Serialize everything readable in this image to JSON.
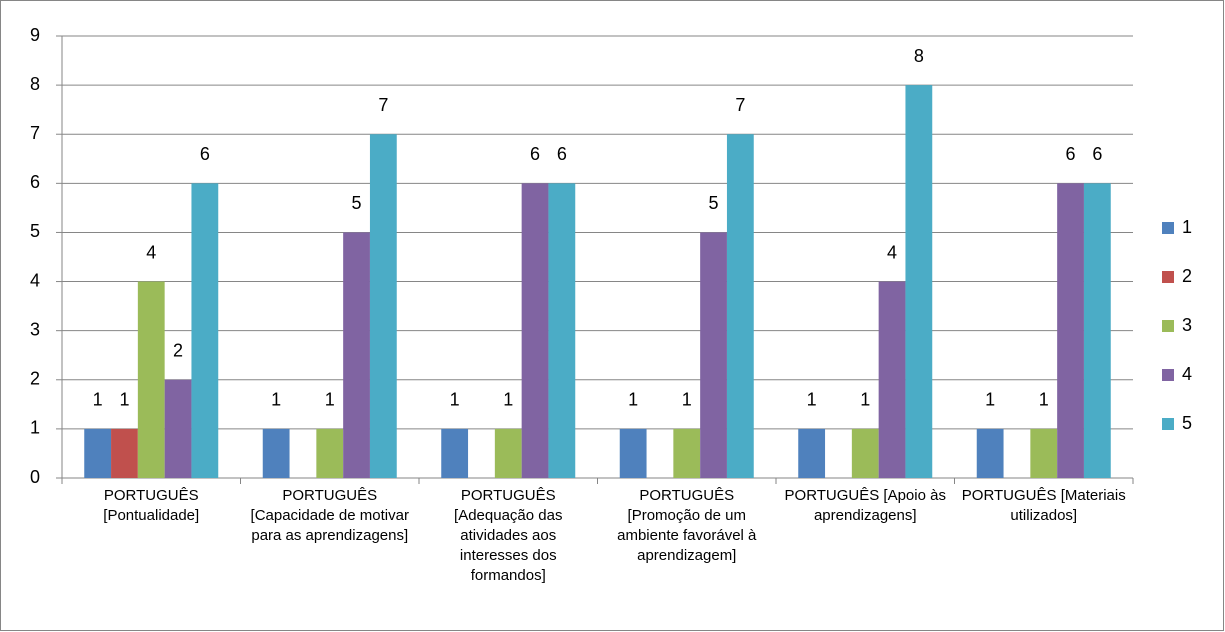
{
  "chart_data": {
    "type": "bar",
    "categories": [
      "PORTUGUÊS [Pontualidade]",
      "PORTUGUÊS [Capacidade de motivar para as aprendizagens]",
      "PORTUGUÊS [Adequação das atividades aos interesses dos formandos]",
      "PORTUGUÊS [Promoção de um ambiente favorável à aprendizagem]",
      "PORTUGUÊS [Apoio às aprendizagens]",
      "PORTUGUÊS [Materiais utilizados]"
    ],
    "series": [
      {
        "name": "1",
        "color": "#4f81bd",
        "values": [
          1,
          1,
          1,
          1,
          1,
          1
        ]
      },
      {
        "name": "2",
        "color": "#c0504d",
        "values": [
          1,
          null,
          null,
          null,
          null,
          null
        ]
      },
      {
        "name": "3",
        "color": "#9bbb59",
        "values": [
          4,
          1,
          1,
          1,
          1,
          1
        ]
      },
      {
        "name": "4",
        "color": "#8064a2",
        "values": [
          2,
          5,
          6,
          5,
          4,
          6
        ]
      },
      {
        "name": "5",
        "color": "#4bacc6",
        "values": [
          6,
          7,
          6,
          7,
          8,
          6
        ]
      }
    ],
    "ylim": [
      0,
      9
    ],
    "yticks": [
      0,
      1,
      2,
      3,
      4,
      5,
      6,
      7,
      8,
      9
    ],
    "grid": true,
    "legend": "right"
  }
}
